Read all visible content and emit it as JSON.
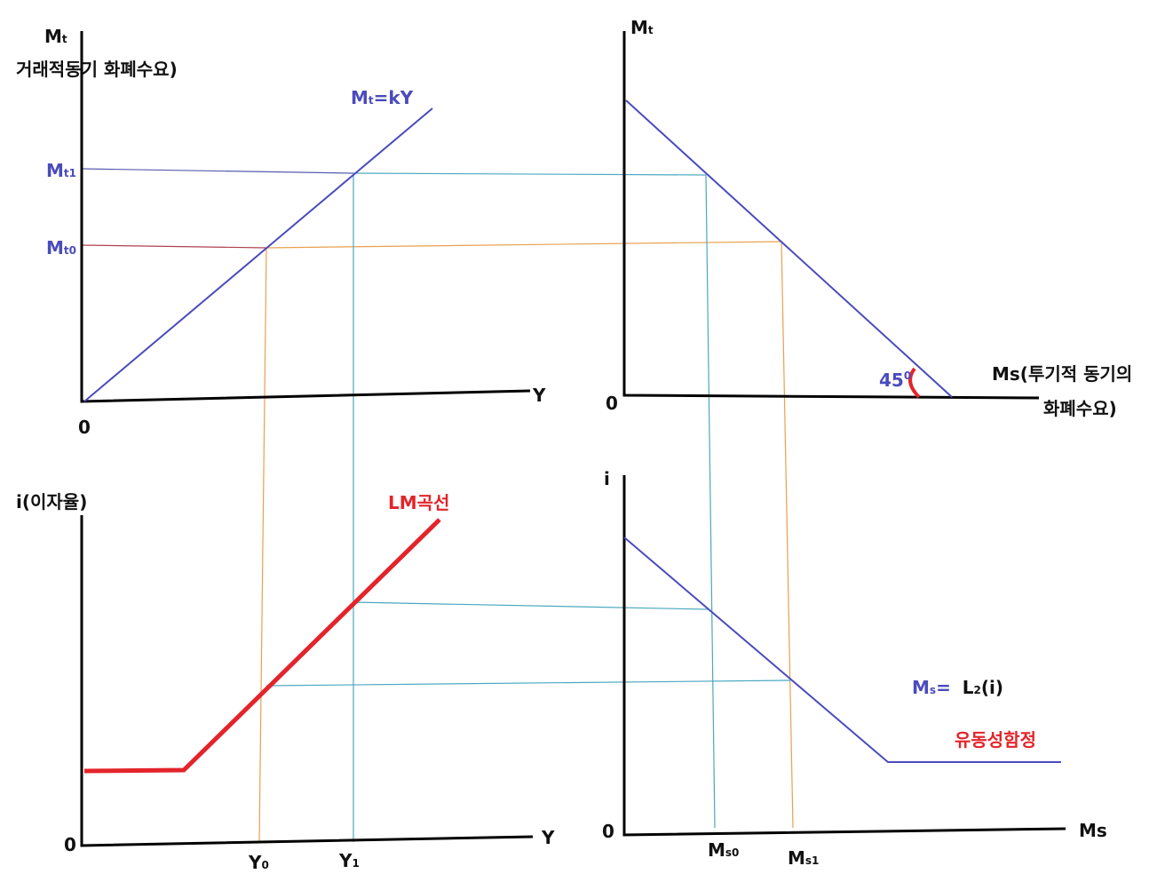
{
  "top_left": {
    "y_axis": {
      "main": "M",
      "sub": "t"
    },
    "caption": "거래적동기 화폐수요)",
    "curve": {
      "main": "M",
      "sub": "t",
      "rest": "=kY"
    },
    "levels": [
      {
        "main": "M",
        "sub": "t1"
      },
      {
        "main": "M",
        "sub": "t0"
      }
    ],
    "x_axis": "Y",
    "origin": "0"
  },
  "top_right": {
    "y_axis": {
      "main": "M",
      "sub": "t"
    },
    "origin": "0",
    "angle": {
      "main": "45",
      "sup": "0"
    },
    "x_axis": [
      "Ms(투기적 동기의",
      "화폐수요)"
    ]
  },
  "bottom_left": {
    "y_axis": "i(이자율)",
    "curve": "LM곡선",
    "origin": "0",
    "x_axis": "Y",
    "points": [
      {
        "main": "Y",
        "sub": "0"
      },
      {
        "main": "Y",
        "sub": "1"
      }
    ]
  },
  "bottom_right": {
    "y_axis": "i",
    "origin": "0",
    "x_axis": "Ms",
    "points": [
      {
        "main": "M",
        "sub": "s0"
      },
      {
        "main": "M",
        "sub": "s1"
      }
    ],
    "curve": {
      "main": "M",
      "sub": "s",
      "eq": "= ",
      "rest": "L",
      "rest_sub": "2",
      "tail": "(i)"
    },
    "trap": "유동성함정"
  }
}
